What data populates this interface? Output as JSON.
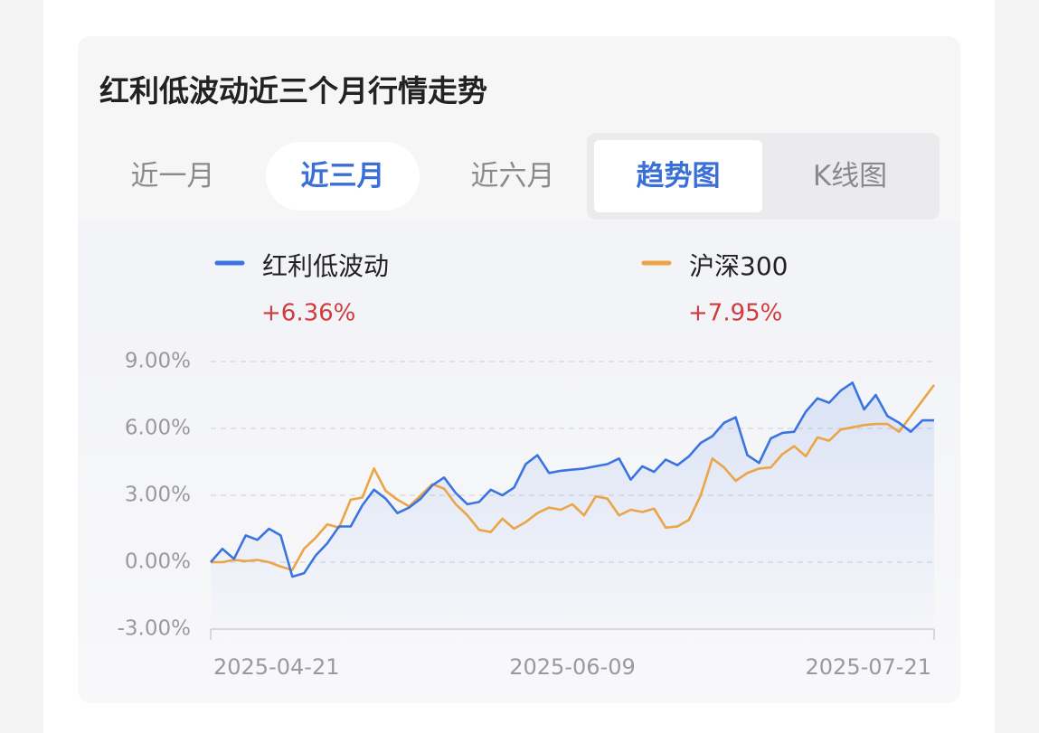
{
  "header": {
    "title": "红利低波动近三个月行情走势"
  },
  "period_tabs": {
    "items": [
      "近一月",
      "近三月",
      "近六月"
    ],
    "active": 1
  },
  "view_tabs": {
    "items": [
      "趋势图",
      "K线图"
    ],
    "active": 0
  },
  "chart_data": {
    "type": "line",
    "categories": [
      "2025-04-21",
      null,
      null,
      null,
      null,
      null,
      null,
      null,
      null,
      null,
      null,
      null,
      null,
      null,
      null,
      null,
      null,
      null,
      null,
      null,
      null,
      null,
      null,
      null,
      null,
      null,
      null,
      null,
      null,
      null,
      null,
      "2025-06-09",
      null,
      null,
      null,
      null,
      null,
      null,
      null,
      null,
      null,
      null,
      null,
      null,
      null,
      null,
      null,
      null,
      null,
      null,
      null,
      null,
      null,
      null,
      null,
      null,
      null,
      null,
      null,
      null,
      null,
      null,
      "2025-07-21"
    ],
    "series": [
      {
        "name": "红利低波动",
        "color": "#3b74e0",
        "change_label": "+6.36%",
        "values": [
          0,
          0.6,
          0.15,
          1.2,
          1.0,
          1.5,
          1.2,
          -0.65,
          -0.5,
          0.3,
          0.85,
          1.6,
          1.6,
          2.55,
          3.25,
          2.85,
          2.2,
          2.45,
          2.85,
          3.45,
          3.8,
          3.1,
          2.6,
          2.7,
          3.25,
          3.0,
          3.35,
          4.4,
          4.8,
          4.0,
          4.1,
          4.15,
          4.2,
          4.3,
          4.4,
          4.65,
          3.7,
          4.3,
          4.05,
          4.6,
          4.35,
          4.75,
          5.35,
          5.65,
          6.25,
          6.5,
          4.8,
          4.45,
          5.55,
          5.8,
          5.85,
          6.75,
          7.35,
          7.15,
          7.7,
          8.05,
          6.85,
          7.5,
          6.55,
          6.25,
          5.85,
          6.36,
          6.36
        ]
      },
      {
        "name": "沪深300",
        "color": "#eba446",
        "change_label": "+7.95%",
        "values": [
          0,
          0.0,
          0.1,
          0.05,
          0.1,
          0.0,
          -0.2,
          -0.35,
          0.6,
          1.1,
          1.7,
          1.55,
          2.8,
          2.9,
          4.2,
          3.2,
          2.8,
          2.5,
          3.0,
          3.5,
          3.3,
          2.6,
          2.1,
          1.45,
          1.35,
          1.95,
          1.5,
          1.8,
          2.2,
          2.45,
          2.35,
          2.6,
          2.1,
          2.95,
          2.85,
          2.1,
          2.35,
          2.25,
          2.4,
          1.55,
          1.6,
          1.9,
          3.0,
          4.65,
          4.25,
          3.65,
          4.0,
          4.2,
          4.25,
          4.85,
          5.2,
          4.75,
          5.6,
          5.45,
          5.95,
          6.05,
          6.15,
          6.2,
          6.2,
          5.85,
          6.55,
          7.25,
          7.95
        ]
      }
    ],
    "ylim": [
      -3,
      9
    ],
    "yticks": [
      {
        "value": -3,
        "label": "-3.00%"
      },
      {
        "value": 0,
        "label": "0.00%"
      },
      {
        "value": 3,
        "label": "3.00%"
      },
      {
        "value": 6,
        "label": "6.00%"
      },
      {
        "value": 9,
        "label": "9.00%"
      }
    ],
    "grid": true,
    "change_color": "#d13b3b"
  }
}
